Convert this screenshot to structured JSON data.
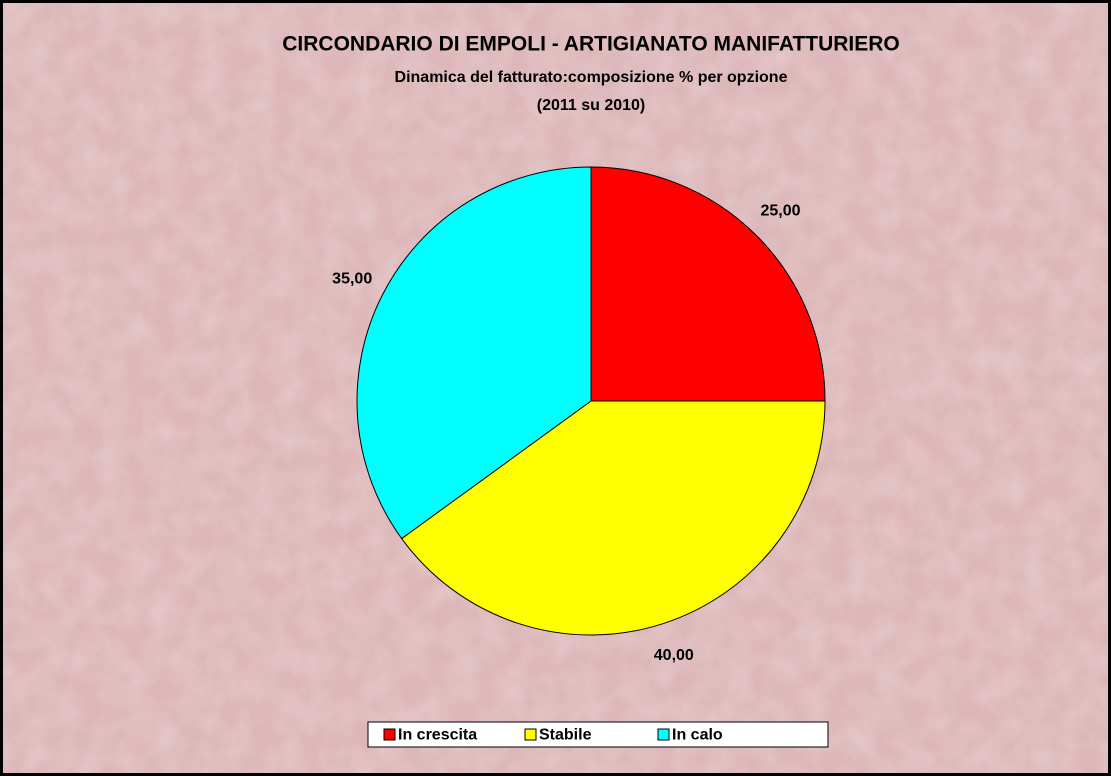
{
  "chart_data": {
    "type": "pie",
    "title": "CIRCONDARIO DI EMPOLI - ARTIGIANATO MANIFATTURIERO",
    "subtitle": [
      "Dinamica del fatturato:composizione % per opzione",
      "(2011 su 2010)"
    ],
    "categories": [
      "In crescita",
      "Stabile",
      "In calo"
    ],
    "values": [
      25,
      40,
      35
    ],
    "value_labels": [
      "25,00",
      "40,00",
      "35,00"
    ],
    "colors": [
      "#ff0000",
      "#ffff00",
      "#00ffff"
    ],
    "legend": "bottom"
  }
}
